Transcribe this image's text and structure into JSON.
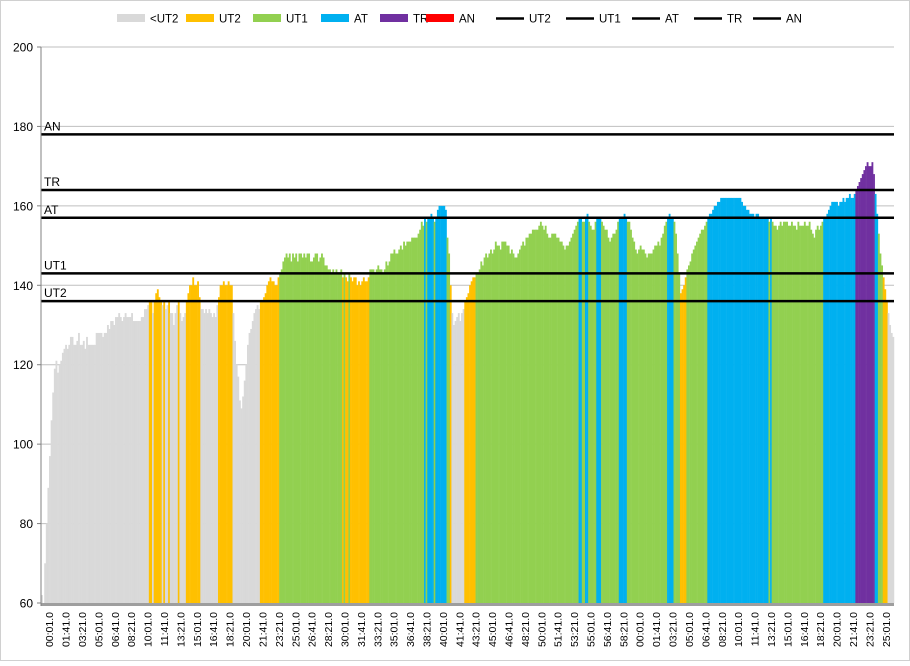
{
  "chart_data": {
    "type": "bar",
    "title": "",
    "xlabel": "",
    "ylabel": "",
    "ylim": [
      60,
      200
    ],
    "yticks": [
      60,
      80,
      100,
      120,
      140,
      160,
      180,
      200
    ],
    "grid": true,
    "legend_position": "top",
    "legend": [
      {
        "label": "<UT2",
        "kind": "box",
        "color": "#d9d9d9"
      },
      {
        "label": "UT2",
        "kind": "box",
        "color": "#ffc000"
      },
      {
        "label": "UT1",
        "kind": "box",
        "color": "#92d050"
      },
      {
        "label": "AT",
        "kind": "box",
        "color": "#00b0f0"
      },
      {
        "label": "TR",
        "kind": "box",
        "color": "#7030a0"
      },
      {
        "label": "AN",
        "kind": "box",
        "color": "#ff0000"
      },
      {
        "label": "UT2",
        "kind": "line",
        "color": "#000000"
      },
      {
        "label": "UT1",
        "kind": "line",
        "color": "#000000"
      },
      {
        "label": "AT",
        "kind": "line",
        "color": "#000000"
      },
      {
        "label": "TR",
        "kind": "line",
        "color": "#000000"
      },
      {
        "label": "AN",
        "kind": "line",
        "color": "#000000"
      }
    ],
    "zone_colors": {
      "lt_ut2": "#d9d9d9",
      "ut2": "#ffc000",
      "ut1": "#92d050",
      "at": "#00b0f0",
      "tr": "#7030a0",
      "an": "#ff0000"
    },
    "thresholds": [
      {
        "name": "AN",
        "value": 178
      },
      {
        "name": "TR",
        "value": 164
      },
      {
        "name": "AT",
        "value": 157
      },
      {
        "name": "UT1",
        "value": 143
      },
      {
        "name": "UT2",
        "value": 136
      }
    ],
    "x_labels": [
      "00:01.0",
      "01:41.0",
      "03:21.0",
      "05:01.0",
      "06:41.0",
      "08:21.0",
      "10:01.0",
      "11:41.0",
      "13:21.0",
      "15:01.0",
      "16:41.0",
      "18:21.0",
      "20:01.0",
      "21:41.0",
      "23:21.0",
      "25:01.0",
      "26:41.0",
      "28:21.0",
      "30:01.0",
      "31:41.0",
      "33:21.0",
      "35:01.0",
      "36:41.0",
      "38:21.0",
      "40:01.0",
      "41:41.0",
      "43:21.0",
      "45:01.0",
      "46:41.0",
      "48:21.0",
      "50:01.0",
      "51:41.0",
      "53:21.0",
      "55:01.0",
      "56:41.0",
      "58:21.0",
      "00:01.0",
      "01:41.0",
      "03:21.0",
      "05:01.0",
      "06:41.0",
      "08:21.0",
      "10:01.0",
      "11:41.0",
      "13:21.0",
      "15:01.0",
      "16:41.0",
      "18:21.0",
      "20:01.0",
      "21:41.0",
      "23:21.0",
      "25:01.0"
    ],
    "heart_rate": [
      62,
      60,
      70,
      80,
      89,
      97,
      106,
      113,
      119,
      121,
      118,
      120,
      121,
      123,
      124,
      125,
      124,
      125,
      127,
      127,
      125,
      125,
      126,
      128,
      125,
      125,
      126,
      124,
      127,
      125,
      125,
      125,
      125,
      125,
      128,
      128,
      128,
      128,
      127,
      128,
      128,
      130,
      129,
      131,
      131,
      130,
      132,
      132,
      133,
      132,
      131,
      132,
      133,
      132,
      132,
      132,
      133,
      131,
      131,
      131,
      131,
      131,
      132,
      132,
      134,
      134,
      135,
      136,
      136,
      133,
      136,
      138,
      139,
      137,
      136,
      135,
      136,
      134,
      135,
      136,
      133,
      133,
      130,
      133,
      135,
      136,
      133,
      131,
      132,
      133,
      136,
      138,
      140,
      140,
      142,
      140,
      140,
      141,
      137,
      134,
      134,
      133,
      134,
      133,
      134,
      133,
      132,
      133,
      132,
      135,
      137,
      140,
      140,
      141,
      140,
      140,
      141,
      140,
      140,
      133,
      126,
      120,
      117,
      111,
      109,
      112,
      116,
      120,
      125,
      128,
      129,
      131,
      133,
      134,
      135,
      134,
      136,
      136,
      137,
      138,
      140,
      141,
      142,
      141,
      141,
      140,
      140,
      142,
      143,
      144,
      146,
      147,
      148,
      147,
      148,
      146,
      148,
      147,
      148,
      146,
      148,
      148,
      147,
      148,
      147,
      148,
      148,
      146,
      146,
      147,
      148,
      148,
      146,
      147,
      148,
      147,
      145,
      145,
      144,
      144,
      143,
      144,
      143,
      144,
      143,
      143,
      144,
      142,
      143,
      142,
      141,
      143,
      142,
      141,
      142,
      142,
      140,
      141,
      140,
      141,
      142,
      141,
      141,
      142,
      144,
      144,
      144,
      143,
      144,
      145,
      144,
      144,
      143,
      144,
      146,
      145,
      146,
      148,
      148,
      149,
      148,
      148,
      149,
      150,
      149,
      151,
      150,
      151,
      151,
      151,
      152,
      152,
      152,
      152,
      153,
      154,
      156,
      155,
      157,
      156,
      157,
      157,
      158,
      157,
      156,
      157,
      159,
      160,
      160,
      160,
      160,
      159,
      152,
      148,
      140,
      133,
      130,
      131,
      132,
      133,
      131,
      133,
      134,
      136,
      137,
      138,
      140,
      141,
      142,
      142,
      143,
      143,
      144,
      146,
      145,
      147,
      148,
      147,
      148,
      149,
      148,
      149,
      151,
      150,
      150,
      149,
      151,
      151,
      151,
      150,
      150,
      148,
      149,
      148,
      147,
      147,
      148,
      149,
      150,
      151,
      150,
      152,
      152,
      153,
      153,
      154,
      154,
      154,
      154,
      155,
      156,
      155,
      154,
      155,
      153,
      152,
      152,
      153,
      153,
      153,
      152,
      152,
      151,
      151,
      150,
      149,
      150,
      150,
      151,
      152,
      153,
      154,
      155,
      156,
      157,
      157,
      156,
      156,
      157,
      158,
      156,
      155,
      154,
      154,
      156,
      157,
      157,
      157,
      156,
      155,
      154,
      154,
      152,
      151,
      152,
      153,
      153,
      154,
      156,
      157,
      157,
      157,
      158,
      157,
      156,
      156,
      154,
      152,
      151,
      149,
      148,
      149,
      150,
      149,
      149,
      148,
      147,
      148,
      148,
      148,
      149,
      150,
      150,
      151,
      150,
      152,
      153,
      155,
      156,
      157,
      158,
      157,
      157,
      156,
      153,
      148,
      143,
      138,
      139,
      140,
      142,
      144,
      145,
      146,
      148,
      149,
      150,
      151,
      152,
      153,
      154,
      154,
      155,
      156,
      157,
      158,
      158,
      159,
      160,
      160,
      161,
      161,
      162,
      162,
      162,
      162,
      162,
      162,
      162,
      162,
      162,
      162,
      162,
      162,
      162,
      161,
      160,
      160,
      159,
      159,
      158,
      158,
      158,
      157,
      158,
      158,
      157,
      157,
      157,
      157,
      157,
      157,
      156,
      157,
      156,
      155,
      155,
      154,
      155,
      156,
      155,
      156,
      156,
      156,
      155,
      155,
      156,
      155,
      155,
      154,
      156,
      155,
      155,
      155,
      156,
      155,
      155,
      156,
      154,
      153,
      152,
      154,
      155,
      154,
      155,
      156,
      157,
      157,
      158,
      159,
      160,
      161,
      161,
      161,
      161,
      160,
      161,
      161,
      162,
      161,
      162,
      162,
      163,
      162,
      162,
      163,
      164,
      165,
      166,
      167,
      168,
      169,
      170,
      171,
      170,
      170,
      171,
      168,
      163,
      158,
      153,
      148,
      145,
      142,
      139,
      136,
      133,
      130,
      128,
      127
    ]
  }
}
